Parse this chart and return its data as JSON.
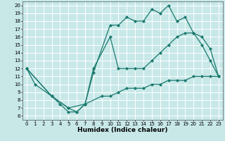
{
  "xlabel": "Humidex (Indice chaleur)",
  "background_color": "#c8e8e8",
  "grid_color": "#ffffff",
  "line_color": "#1a7a6e",
  "xlim": [
    -0.5,
    23.5
  ],
  "ylim": [
    5.5,
    20.5
  ],
  "xticks": [
    0,
    1,
    2,
    3,
    4,
    5,
    6,
    7,
    8,
    9,
    10,
    11,
    12,
    13,
    14,
    15,
    16,
    17,
    18,
    19,
    20,
    21,
    22,
    23
  ],
  "yticks": [
    6,
    7,
    8,
    9,
    10,
    11,
    12,
    13,
    14,
    15,
    16,
    17,
    18,
    19,
    20
  ],
  "series": [
    {
      "x": [
        0,
        1,
        3,
        4,
        5,
        6,
        7,
        8,
        10,
        11,
        12,
        13,
        14,
        15,
        16,
        17,
        18,
        19,
        20,
        21,
        22,
        23
      ],
      "y": [
        12,
        10,
        8.5,
        7.5,
        6.5,
        6.5,
        7.5,
        11.5,
        17.5,
        17.5,
        18.5,
        18,
        18,
        19.5,
        19,
        20,
        18,
        18.5,
        16.5,
        15,
        13,
        11
      ]
    },
    {
      "x": [
        0,
        3,
        5,
        6,
        7,
        8,
        10,
        11,
        12,
        13,
        14,
        15,
        16,
        17,
        18,
        19,
        20,
        21,
        22,
        23
      ],
      "y": [
        12,
        8.5,
        7,
        6.5,
        7.5,
        12,
        16,
        12,
        12,
        12,
        12,
        13,
        14,
        15,
        16,
        16.5,
        16.5,
        16,
        14.5,
        11
      ]
    },
    {
      "x": [
        0,
        3,
        5,
        7,
        9,
        10,
        11,
        12,
        13,
        14,
        15,
        16,
        17,
        18,
        19,
        20,
        21,
        22,
        23
      ],
      "y": [
        12,
        8.5,
        7,
        7.5,
        8.5,
        8.5,
        9,
        9.5,
        9.5,
        9.5,
        10,
        10,
        10.5,
        10.5,
        10.5,
        11,
        11,
        11,
        11
      ]
    }
  ],
  "marker": "D",
  "markersize": 2.0,
  "linewidth": 0.9,
  "label_fontsize": 6.5,
  "tick_fontsize": 5.0
}
